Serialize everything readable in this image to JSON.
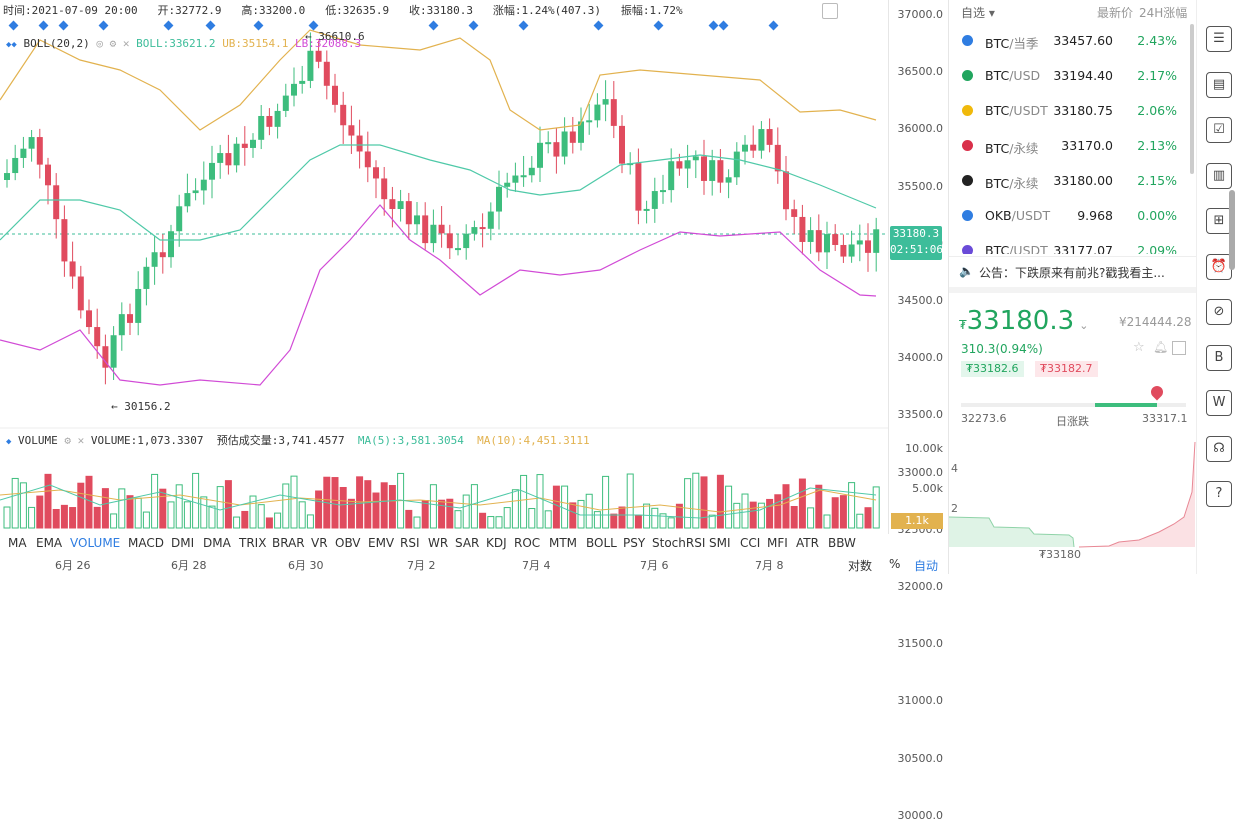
{
  "header": {
    "time": "时间:2021-07-09 20:00",
    "open": "开:32772.9",
    "high": "高:33200.0",
    "low": "低:32635.9",
    "close": "收:33180.3",
    "change": "涨幅:1.24%(407.3)",
    "amplitude": "振幅:1.72%"
  },
  "boll": {
    "name": "BOLL(20,2)",
    "boll": "BOLL:33621.2",
    "ub": "UB:35154.1",
    "lb": "LB:32088.3"
  },
  "annotations": {
    "high": "← 36610.6",
    "low": "← 30156.2"
  },
  "price_axis": [
    "37000.0",
    "36500.0",
    "36000.0",
    "35500.0",
    "35000.0",
    "34500.0",
    "34000.0",
    "33500.0",
    "33000.0",
    "32500.0",
    "32000.0",
    "31500.0",
    "31000.0",
    "30500.0",
    "30000.0"
  ],
  "current_price": {
    "value": "33180.3",
    "countdown": "02:51:06"
  },
  "volume": {
    "name": "VOLUME",
    "volume": "VOLUME:1,073.3307",
    "estimated": "预估成交量:3,741.4577",
    "ma5": "MA(5):3,581.3054",
    "ma10": "MA(10):4,451.3111",
    "axis": [
      "10.00k",
      "5.00k"
    ],
    "current": "1.1k"
  },
  "indicator_tabs": [
    "MA",
    "EMA",
    "VOLUME",
    "MACD",
    "DMI",
    "DMA",
    "TRIX",
    "BRAR",
    "VR",
    "OBV",
    "EMV",
    "RSI",
    "WR",
    "SAR",
    "KDJ",
    "ROC",
    "MTM",
    "BOLL",
    "PSY",
    "StochRSI",
    "SMI",
    "CCI",
    "MFI",
    "ATR",
    "BBW"
  ],
  "active_tab": "VOLUME",
  "dates": [
    "6月 26",
    "6月 28",
    "6月 30",
    "7月 2",
    "7月 4",
    "7月 6",
    "7月 8"
  ],
  "axis_controls": {
    "log": "对数",
    "percent": "%",
    "auto": "自动"
  },
  "watchlist": {
    "tab": "自选",
    "col_price": "最新价",
    "col_change": "24H涨幅",
    "rows": [
      {
        "name": "BTC",
        "suffix": "/当季",
        "price": "33457.60",
        "change": "2.43%",
        "color": "#2f7de1"
      },
      {
        "name": "BTC",
        "suffix": "/USD",
        "price": "33194.40",
        "change": "2.17%",
        "color": "#21a55e"
      },
      {
        "name": "BTC",
        "suffix": "/USDT",
        "price": "33180.75",
        "change": "2.06%",
        "color": "#f0b90b"
      },
      {
        "name": "BTC",
        "suffix": "/永续",
        "price": "33170.0",
        "change": "2.13%",
        "color": "#d9304a"
      },
      {
        "name": "BTC",
        "suffix": "/永续",
        "price": "33180.00",
        "change": "2.15%",
        "color": "#222222"
      },
      {
        "name": "OKB",
        "suffix": "/USDT",
        "price": "9.968",
        "change": "0.00%",
        "color": "#2f7de1"
      },
      {
        "name": "BTC",
        "suffix": "/USDT",
        "price": "33177.07",
        "change": "2.09%",
        "color": "#6a4bd8"
      }
    ]
  },
  "announcement": "公告：下跌原来有前兆?戳我看主...",
  "quote": {
    "currency": "₮",
    "price": "33180.3",
    "cny": "¥214444.28",
    "change": "310.3(0.94%)",
    "bid": "₮33182.6",
    "ask": "₮33182.7",
    "day_low": "32273.6",
    "day_label": "日涨跌",
    "day_high": "33317.1",
    "depth_mid": "₮33180",
    "depth_axis": [
      "4",
      "2"
    ]
  },
  "colors": {
    "up": "#3dbd7d",
    "down": "#e04b5e",
    "accent": "#2f7de1",
    "ub": "#e2b24f",
    "lb": "#d14bd6",
    "mid": "#4fc9a8"
  },
  "sidebar_icons": [
    "news-icon",
    "notes-icon",
    "clipboard-check-icon",
    "bar-chart-icon",
    "add-widget-icon",
    "alarm-clock-icon",
    "compass-icon",
    "b-document-icon",
    "w-window-icon",
    "headset-icon",
    "help-icon"
  ]
}
